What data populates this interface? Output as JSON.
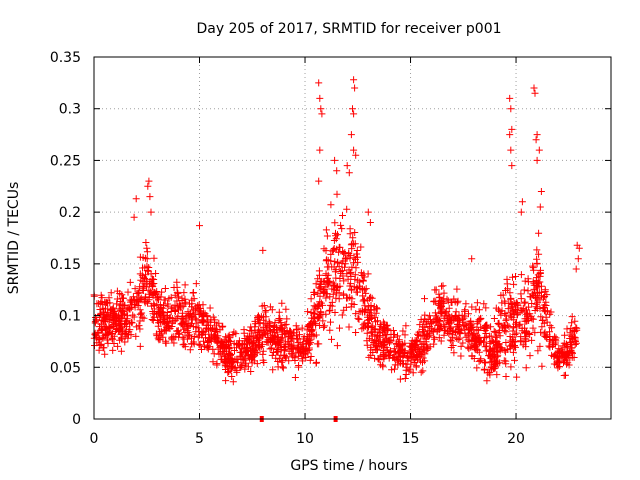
{
  "chart_data": {
    "type": "scatter",
    "title": "Day 205 of 2017, SRMTID for receiver p001",
    "xlabel": "GPS time / hours",
    "ylabel": "SRMTID / TECUs",
    "xlim": [
      0,
      24.5
    ],
    "ylim": [
      0,
      0.35
    ],
    "xticks": [
      0,
      5,
      10,
      15,
      20
    ],
    "xtick_labels": [
      "0",
      "5",
      "10",
      "15",
      "20"
    ],
    "yticks": [
      0,
      0.05,
      0.1,
      0.15,
      0.2,
      0.25,
      0.3,
      0.35
    ],
    "ytick_labels": [
      "0",
      "0.05",
      "0.1",
      "0.15",
      "0.2",
      "0.25",
      "0.3",
      "0.35"
    ],
    "grid": true,
    "marker": "plus",
    "series_color": "#ff0000",
    "profile": [
      {
        "x": 0.0,
        "y": 0.095,
        "s": 0.025
      },
      {
        "x": 0.5,
        "y": 0.09,
        "s": 0.025
      },
      {
        "x": 1.0,
        "y": 0.095,
        "s": 0.025
      },
      {
        "x": 1.5,
        "y": 0.1,
        "s": 0.025
      },
      {
        "x": 2.0,
        "y": 0.11,
        "s": 0.03
      },
      {
        "x": 2.5,
        "y": 0.135,
        "s": 0.04
      },
      {
        "x": 3.0,
        "y": 0.1,
        "s": 0.025
      },
      {
        "x": 3.5,
        "y": 0.095,
        "s": 0.025
      },
      {
        "x": 4.0,
        "y": 0.1,
        "s": 0.025
      },
      {
        "x": 4.5,
        "y": 0.095,
        "s": 0.025
      },
      {
        "x": 5.0,
        "y": 0.1,
        "s": 0.03
      },
      {
        "x": 5.5,
        "y": 0.085,
        "s": 0.025
      },
      {
        "x": 6.0,
        "y": 0.07,
        "s": 0.02
      },
      {
        "x": 6.5,
        "y": 0.06,
        "s": 0.02
      },
      {
        "x": 7.0,
        "y": 0.065,
        "s": 0.02
      },
      {
        "x": 7.5,
        "y": 0.07,
        "s": 0.02
      },
      {
        "x": 8.0,
        "y": 0.085,
        "s": 0.025
      },
      {
        "x": 8.5,
        "y": 0.08,
        "s": 0.025
      },
      {
        "x": 9.0,
        "y": 0.075,
        "s": 0.025
      },
      {
        "x": 9.5,
        "y": 0.07,
        "s": 0.02
      },
      {
        "x": 10.0,
        "y": 0.065,
        "s": 0.02
      },
      {
        "x": 10.5,
        "y": 0.1,
        "s": 0.04
      },
      {
        "x": 11.0,
        "y": 0.13,
        "s": 0.045
      },
      {
        "x": 11.5,
        "y": 0.14,
        "s": 0.045
      },
      {
        "x": 12.0,
        "y": 0.15,
        "s": 0.05
      },
      {
        "x": 12.5,
        "y": 0.14,
        "s": 0.045
      },
      {
        "x": 13.0,
        "y": 0.1,
        "s": 0.03
      },
      {
        "x": 13.5,
        "y": 0.075,
        "s": 0.025
      },
      {
        "x": 14.0,
        "y": 0.07,
        "s": 0.02
      },
      {
        "x": 14.5,
        "y": 0.065,
        "s": 0.02
      },
      {
        "x": 15.0,
        "y": 0.065,
        "s": 0.02
      },
      {
        "x": 15.5,
        "y": 0.075,
        "s": 0.025
      },
      {
        "x": 16.0,
        "y": 0.09,
        "s": 0.025
      },
      {
        "x": 16.5,
        "y": 0.1,
        "s": 0.03
      },
      {
        "x": 17.0,
        "y": 0.095,
        "s": 0.025
      },
      {
        "x": 17.5,
        "y": 0.09,
        "s": 0.025
      },
      {
        "x": 18.0,
        "y": 0.08,
        "s": 0.025
      },
      {
        "x": 18.5,
        "y": 0.075,
        "s": 0.025
      },
      {
        "x": 19.0,
        "y": 0.065,
        "s": 0.025
      },
      {
        "x": 19.5,
        "y": 0.09,
        "s": 0.045
      },
      {
        "x": 20.0,
        "y": 0.1,
        "s": 0.04
      },
      {
        "x": 20.5,
        "y": 0.095,
        "s": 0.035
      },
      {
        "x": 21.0,
        "y": 0.13,
        "s": 0.05
      },
      {
        "x": 21.5,
        "y": 0.09,
        "s": 0.03
      },
      {
        "x": 22.0,
        "y": 0.06,
        "s": 0.015
      },
      {
        "x": 22.5,
        "y": 0.065,
        "s": 0.015
      },
      {
        "x": 22.9,
        "y": 0.09,
        "s": 0.03
      }
    ],
    "n_points": 2300,
    "outliers": [
      {
        "x": 10.65,
        "y": 0.325
      },
      {
        "x": 10.7,
        "y": 0.31
      },
      {
        "x": 10.75,
        "y": 0.3
      },
      {
        "x": 10.8,
        "y": 0.295
      },
      {
        "x": 10.7,
        "y": 0.26
      },
      {
        "x": 10.65,
        "y": 0.23
      },
      {
        "x": 12.3,
        "y": 0.328
      },
      {
        "x": 12.35,
        "y": 0.32
      },
      {
        "x": 12.25,
        "y": 0.3
      },
      {
        "x": 12.3,
        "y": 0.295
      },
      {
        "x": 12.2,
        "y": 0.275
      },
      {
        "x": 12.3,
        "y": 0.26
      },
      {
        "x": 12.4,
        "y": 0.255
      },
      {
        "x": 12.0,
        "y": 0.245
      },
      {
        "x": 12.1,
        "y": 0.238
      },
      {
        "x": 2.6,
        "y": 0.23
      },
      {
        "x": 2.55,
        "y": 0.225
      },
      {
        "x": 2.65,
        "y": 0.215
      },
      {
        "x": 2.7,
        "y": 0.2
      },
      {
        "x": 2.0,
        "y": 0.213
      },
      {
        "x": 1.9,
        "y": 0.195
      },
      {
        "x": 19.7,
        "y": 0.31
      },
      {
        "x": 19.75,
        "y": 0.3
      },
      {
        "x": 19.8,
        "y": 0.28
      },
      {
        "x": 19.7,
        "y": 0.275
      },
      {
        "x": 19.75,
        "y": 0.26
      },
      {
        "x": 19.8,
        "y": 0.245
      },
      {
        "x": 20.85,
        "y": 0.32
      },
      {
        "x": 20.9,
        "y": 0.315
      },
      {
        "x": 21.0,
        "y": 0.275
      },
      {
        "x": 20.95,
        "y": 0.27
      },
      {
        "x": 21.1,
        "y": 0.26
      },
      {
        "x": 21.0,
        "y": 0.25
      },
      {
        "x": 21.2,
        "y": 0.22
      },
      {
        "x": 21.15,
        "y": 0.205
      },
      {
        "x": 20.3,
        "y": 0.21
      },
      {
        "x": 20.25,
        "y": 0.2
      },
      {
        "x": 5.0,
        "y": 0.187
      },
      {
        "x": 22.9,
        "y": 0.168
      },
      {
        "x": 23.0,
        "y": 0.165
      },
      {
        "x": 22.95,
        "y": 0.155
      },
      {
        "x": 22.85,
        "y": 0.145
      },
      {
        "x": 8.0,
        "y": 0.163
      },
      {
        "x": 17.9,
        "y": 0.155
      },
      {
        "x": 11.4,
        "y": 0.25
      },
      {
        "x": 11.5,
        "y": 0.24
      },
      {
        "x": 13.0,
        "y": 0.2
      },
      {
        "x": 13.1,
        "y": 0.19
      }
    ],
    "zero_points": [
      {
        "x": 7.95,
        "y": 0.0
      },
      {
        "x": 11.45,
        "y": 0.0
      }
    ]
  }
}
